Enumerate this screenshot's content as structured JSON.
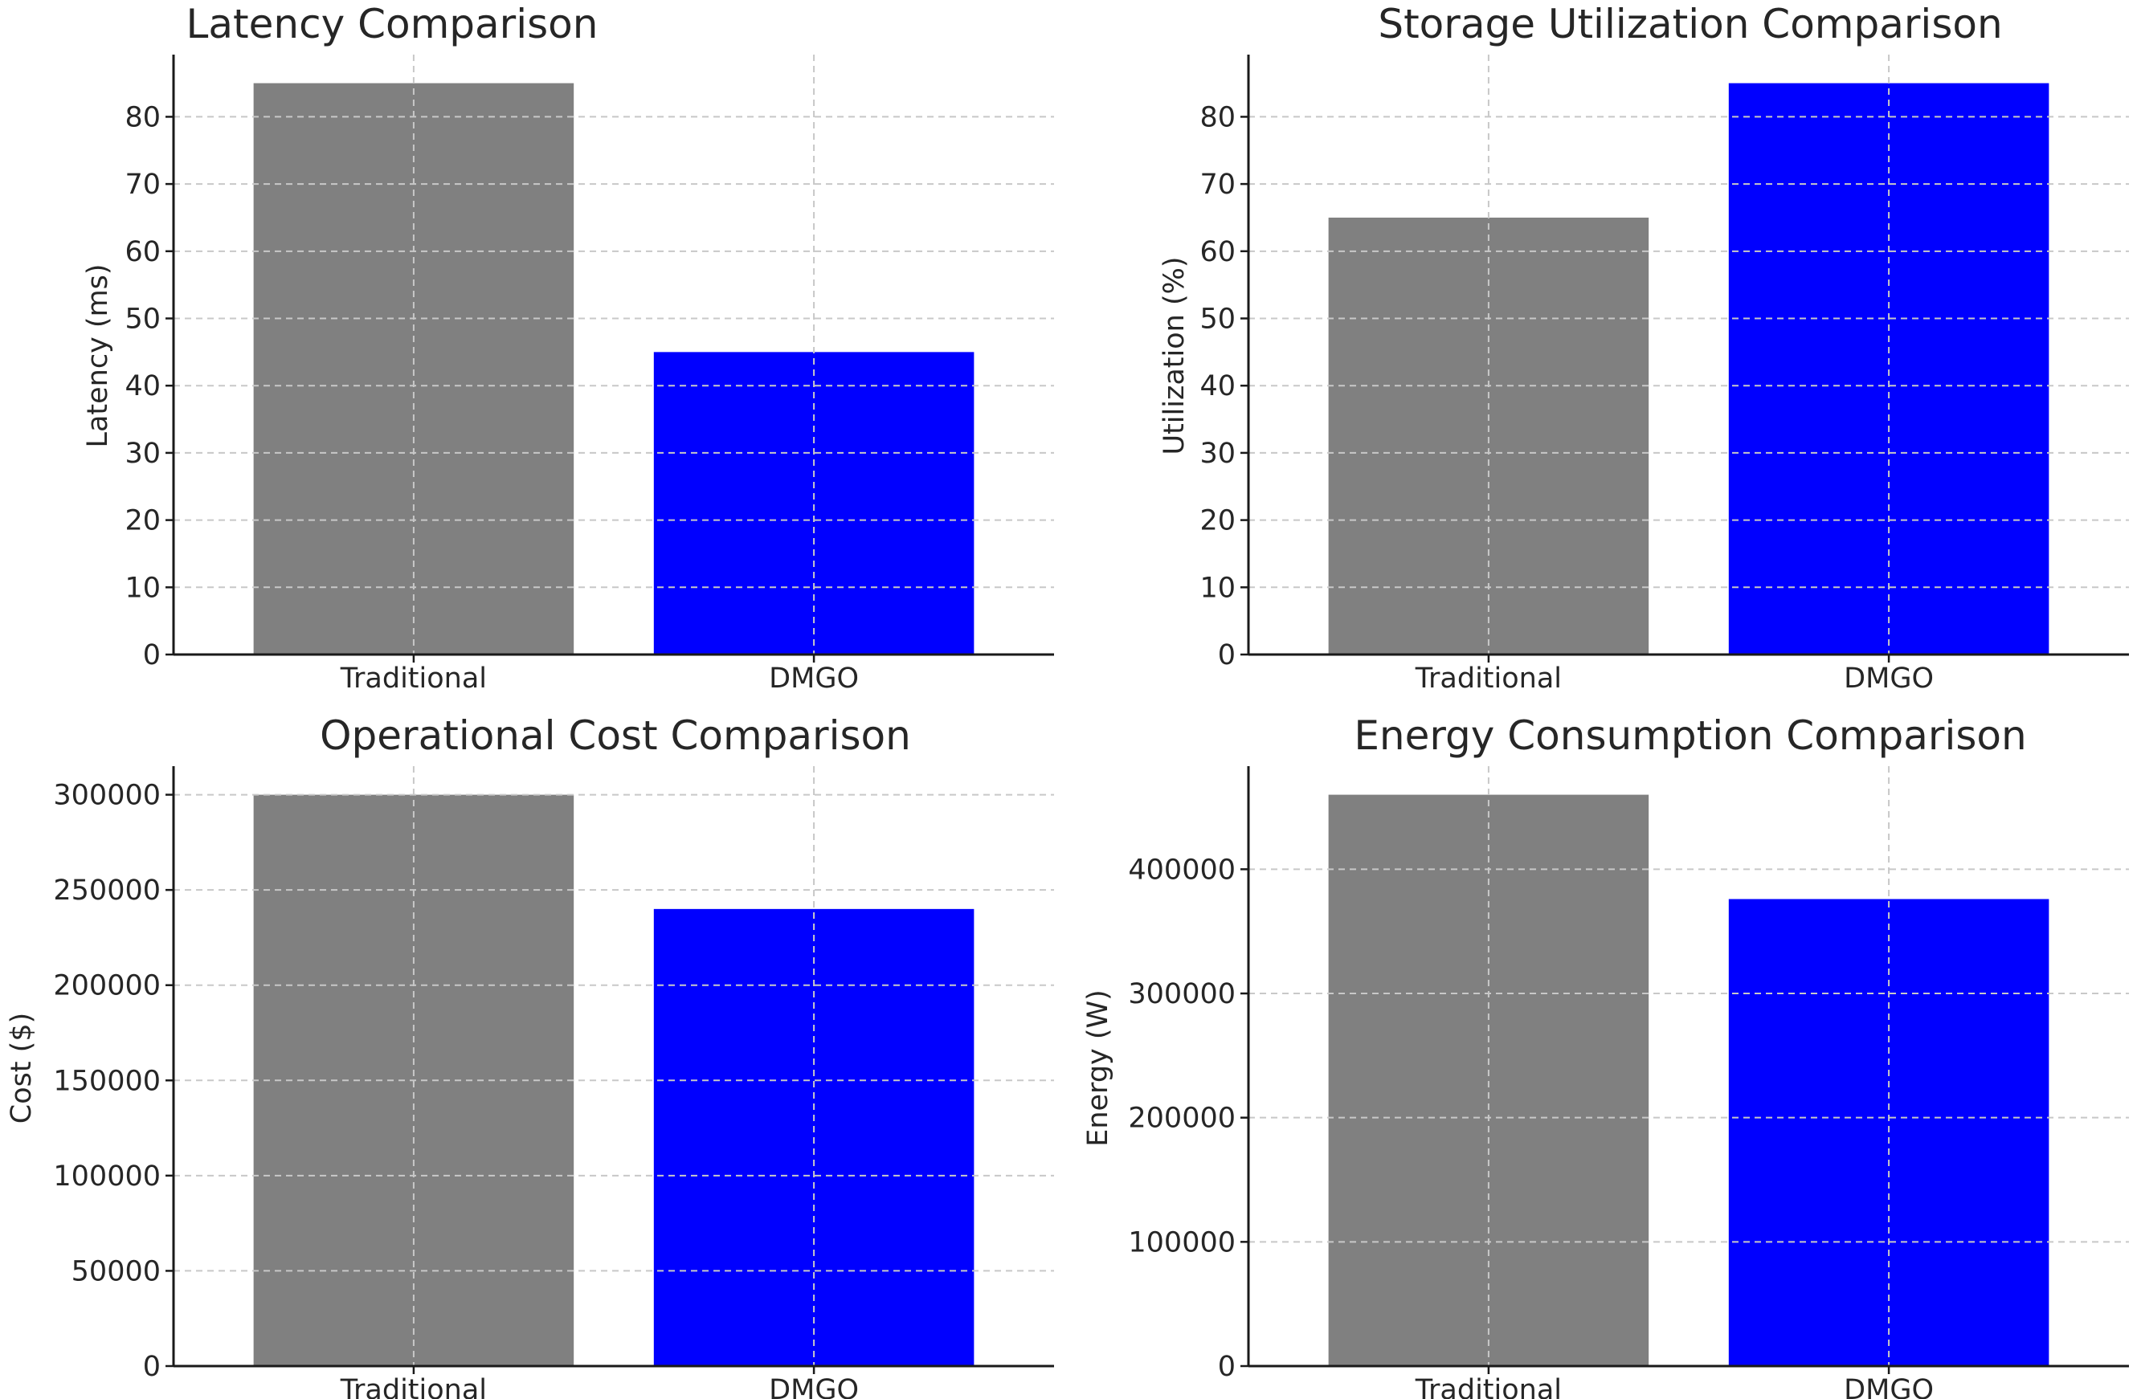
{
  "figure": {
    "colors": {
      "traditional": "#808080",
      "dmgo": "#0000ff",
      "grid": "#c8c8c8",
      "axis": "#1a1a1a"
    }
  },
  "chart_data": [
    {
      "type": "bar",
      "title": "Latency Comparison",
      "xlabel": "",
      "ylabel": "Latency (ms)",
      "categories": [
        "Traditional",
        "DMGO"
      ],
      "values": [
        85,
        45
      ],
      "colors": [
        "#808080",
        "#0000ff"
      ],
      "ylim": [
        0,
        89.25
      ],
      "yticks": [
        0,
        10,
        20,
        30,
        40,
        50,
        60,
        70,
        80
      ],
      "ytick_labels": [
        "0",
        "10",
        "20",
        "30",
        "40",
        "50",
        "60",
        "70",
        "80"
      ],
      "grid": true
    },
    {
      "type": "bar",
      "title": "Storage Utilization Comparison",
      "xlabel": "",
      "ylabel": "Utilization (%)",
      "categories": [
        "Traditional",
        "DMGO"
      ],
      "values": [
        65,
        85
      ],
      "colors": [
        "#808080",
        "#0000ff"
      ],
      "ylim": [
        0,
        89.25
      ],
      "yticks": [
        0,
        10,
        20,
        30,
        40,
        50,
        60,
        70,
        80
      ],
      "ytick_labels": [
        "0",
        "10",
        "20",
        "30",
        "40",
        "50",
        "60",
        "70",
        "80"
      ],
      "grid": true
    },
    {
      "type": "bar",
      "title": "Operational Cost Comparison",
      "xlabel": "",
      "ylabel": "Cost ($)",
      "categories": [
        "Traditional",
        "DMGO"
      ],
      "values": [
        300000,
        240000
      ],
      "colors": [
        "#808080",
        "#0000ff"
      ],
      "ylim": [
        0,
        315000
      ],
      "yticks": [
        0,
        50000,
        100000,
        150000,
        200000,
        250000,
        300000
      ],
      "ytick_labels": [
        "0",
        "50000",
        "100000",
        "150000",
        "200000",
        "250000",
        "300000"
      ],
      "grid": true
    },
    {
      "type": "bar",
      "title": "Energy Consumption Comparison",
      "xlabel": "",
      "ylabel": "Energy (W)",
      "categories": [
        "Traditional",
        "DMGO"
      ],
      "values": [
        460000,
        376000
      ],
      "colors": [
        "#808080",
        "#0000ff"
      ],
      "ylim": [
        0,
        483000
      ],
      "yticks": [
        0,
        100000,
        200000,
        300000,
        400000
      ],
      "ytick_labels": [
        "0",
        "100000",
        "200000",
        "300000",
        "400000"
      ],
      "grid": true
    }
  ]
}
